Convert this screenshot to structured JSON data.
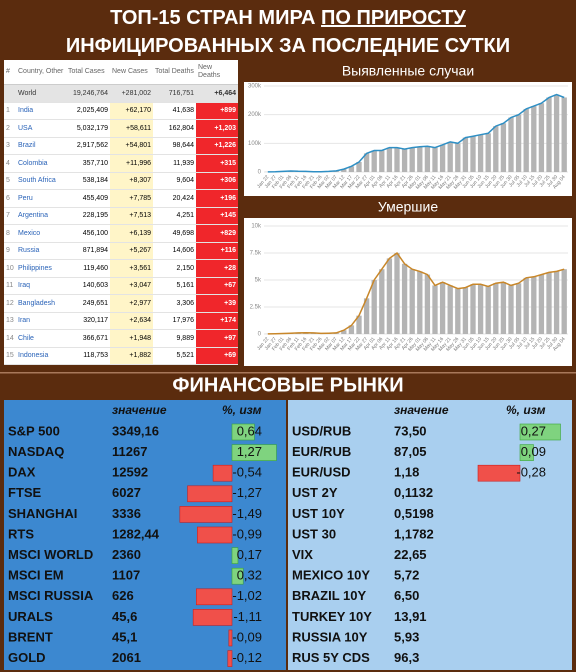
{
  "header": {
    "line1_a": "ТОП-15 СТРАН МИРА ",
    "line1_b": "ПО ПРИРОСТУ",
    "line2": "ИНФИЦИРОВАННЫХ ЗА ПОСЛЕДНИЕ СУТКИ"
  },
  "covid_table": {
    "columns": [
      "#",
      "Country, Other",
      "Total Cases",
      "New Cases",
      "Total Deaths",
      "New Deaths"
    ],
    "world": [
      "World",
      "19,246,764",
      "+281,002",
      "716,751",
      "+6,464"
    ],
    "rows": [
      [
        1,
        "India",
        "2,025,409",
        "+62,170",
        "41,638",
        "+899"
      ],
      [
        2,
        "USA",
        "5,032,179",
        "+58,611",
        "162,804",
        "+1,203"
      ],
      [
        3,
        "Brazil",
        "2,917,562",
        "+54,801",
        "98,644",
        "+1,226"
      ],
      [
        4,
        "Colombia",
        "357,710",
        "+11,996",
        "11,939",
        "+315"
      ],
      [
        5,
        "South Africa",
        "538,184",
        "+8,307",
        "9,604",
        "+306"
      ],
      [
        6,
        "Peru",
        "455,409",
        "+7,785",
        "20,424",
        "+196"
      ],
      [
        7,
        "Argentina",
        "228,195",
        "+7,513",
        "4,251",
        "+145"
      ],
      [
        8,
        "Mexico",
        "456,100",
        "+6,139",
        "49,698",
        "+829"
      ],
      [
        9,
        "Russia",
        "871,894",
        "+5,267",
        "14,606",
        "+116"
      ],
      [
        10,
        "Philippines",
        "119,460",
        "+3,561",
        "2,150",
        "+28"
      ],
      [
        11,
        "Iraq",
        "140,603",
        "+3,047",
        "5,161",
        "+67"
      ],
      [
        12,
        "Bangladesh",
        "249,651",
        "+2,977",
        "3,306",
        "+39"
      ],
      [
        13,
        "Iran",
        "320,117",
        "+2,634",
        "17,976",
        "+174"
      ],
      [
        14,
        "Chile",
        "366,671",
        "+1,948",
        "9,889",
        "+97"
      ],
      [
        15,
        "Indonesia",
        "118,753",
        "+1,882",
        "5,521",
        "+69"
      ]
    ]
  },
  "chart_data": [
    {
      "type": "bar",
      "title": "Выявленные случаи",
      "color": "#b4b4b4",
      "line_color": "#2f8fc4",
      "categories": [
        "Jan 22",
        "Jan 27",
        "Feb 01",
        "Feb 06",
        "Feb 11",
        "Feb 16",
        "Feb 21",
        "Feb 26",
        "Mar 02",
        "Mar 07",
        "Mar 12",
        "Mar 17",
        "Mar 22",
        "Mar 27",
        "Apr 01",
        "Apr 06",
        "Apr 11",
        "Apr 16",
        "Apr 21",
        "Apr 26",
        "May 01",
        "May 06",
        "May 11",
        "May 16",
        "May 21",
        "May 26",
        "May 31",
        "Jun 05",
        "Jun 10",
        "Jun 15",
        "Jun 20",
        "Jun 25",
        "Jun 30",
        "Jul 05",
        "Jul 10",
        "Jul 15",
        "Jul 20",
        "Jul 25",
        "Jul 30",
        "Aug 04"
      ],
      "values": [
        500,
        700,
        2000,
        3500,
        2500,
        2000,
        1000,
        1200,
        2000,
        4000,
        10000,
        20000,
        35000,
        65000,
        75000,
        75000,
        85000,
        85000,
        80000,
        85000,
        88000,
        90000,
        85000,
        95000,
        105000,
        100000,
        120000,
        125000,
        130000,
        135000,
        160000,
        170000,
        190000,
        200000,
        220000,
        230000,
        240000,
        260000,
        270000,
        260000
      ],
      "ylim": [
        0,
        300000
      ],
      "yticks": [
        0,
        {
          "value": 100000,
          "label": "100k"
        },
        {
          "value": 200000,
          "label": "200k"
        },
        {
          "value": 300000,
          "label": "300k"
        }
      ],
      "grid": true
    },
    {
      "type": "bar",
      "title": "Умершие",
      "color": "#b4b4b4",
      "line_color": "#c8872a",
      "categories": [
        "Jan 22",
        "Jan 27",
        "Feb 01",
        "Feb 06",
        "Feb 11",
        "Feb 16",
        "Feb 21",
        "Feb 26",
        "Mar 02",
        "Mar 07",
        "Mar 12",
        "Mar 17",
        "Mar 22",
        "Mar 27",
        "Apr 01",
        "Apr 06",
        "Apr 11",
        "Apr 16",
        "Apr 21",
        "Apr 26",
        "May 01",
        "May 06",
        "May 11",
        "May 16",
        "May 21",
        "May 26",
        "May 31",
        "Jun 05",
        "Jun 10",
        "Jun 15",
        "Jun 20",
        "Jun 25",
        "Jun 30",
        "Jul 05",
        "Jul 10",
        "Jul 15",
        "Jul 20",
        "Jul 25",
        "Jul 30",
        "Aug 04"
      ],
      "values": [
        10,
        30,
        45,
        70,
        100,
        110,
        100,
        60,
        70,
        100,
        350,
        800,
        1700,
        3300,
        5000,
        6000,
        7000,
        7500,
        6500,
        6000,
        5800,
        5500,
        4500,
        4800,
        4500,
        4200,
        4300,
        4600,
        4600,
        4400,
        4700,
        4800,
        4500,
        4700,
        5200,
        5300,
        5500,
        5700,
        5800,
        6000
      ],
      "ylim": [
        0,
        10000
      ],
      "yticks": [
        0,
        {
          "value": 2500,
          "label": "2.5k"
        },
        {
          "value": 5000,
          "label": "5k"
        },
        {
          "value": 7500,
          "label": "7.5k"
        },
        {
          "value": 10000,
          "label": "10k"
        }
      ],
      "grid": true
    }
  ],
  "markets": {
    "title": "ФИНАНСОВЫЕ РЫНКИ",
    "value_header": "значение",
    "change_header": "%, изм",
    "left": [
      {
        "name": "S&P 500",
        "value": "3349,16",
        "change": 0.64,
        "change_label": "0,64"
      },
      {
        "name": "NASDAQ",
        "value": "11267",
        "change": 1.27,
        "change_label": "1,27"
      },
      {
        "name": "DAX",
        "value": "12592",
        "change": -0.54,
        "change_label": "-0,54"
      },
      {
        "name": "FTSE",
        "value": "6027",
        "change": -1.27,
        "change_label": "-1,27"
      },
      {
        "name": "SHANGHAI",
        "value": "3336",
        "change": -1.49,
        "change_label": "-1,49"
      },
      {
        "name": "RTS",
        "value": "1282,44",
        "change": -0.99,
        "change_label": "-0,99"
      },
      {
        "name": "MSCI WORLD",
        "value": "2360",
        "change": 0.17,
        "change_label": "0,17"
      },
      {
        "name": "MSCI EM",
        "value": "1107",
        "change": 0.32,
        "change_label": "0,32"
      },
      {
        "name": "MSCI RUSSIA",
        "value": "626",
        "change": -1.02,
        "change_label": "-1,02"
      },
      {
        "name": "URALS",
        "value": "45,6",
        "change": -1.11,
        "change_label": "-1,11"
      },
      {
        "name": "BRENT",
        "value": "45,1",
        "change": -0.09,
        "change_label": "-0,09"
      },
      {
        "name": "GOLD",
        "value": "2061",
        "change": -0.12,
        "change_label": "-0,12"
      }
    ],
    "right": [
      {
        "name": "USD/RUB",
        "value": "73,50",
        "change": 0.27,
        "change_label": "0,27"
      },
      {
        "name": "EUR/RUB",
        "value": "87,05",
        "change": 0.09,
        "change_label": "0,09"
      },
      {
        "name": "EUR/USD",
        "value": "1,18",
        "change": -0.28,
        "change_label": "-0,28"
      },
      {
        "name": "UST 2Y",
        "value": "0,1132"
      },
      {
        "name": "UST 10Y",
        "value": "0,5198"
      },
      {
        "name": "UST 30",
        "value": "1,1782"
      },
      {
        "name": "VIX",
        "value": "22,65"
      },
      {
        "name": "MEXICO 10Y",
        "value": "5,72"
      },
      {
        "name": "BRAZIL 10Y",
        "value": "6,50"
      },
      {
        "name": "TURKEY 10Y",
        "value": "13,91"
      },
      {
        "name": "RUSSIA 10Y",
        "value": "5,93"
      },
      {
        "name": "RUS 5Y CDS",
        "value": "96,3"
      }
    ]
  }
}
